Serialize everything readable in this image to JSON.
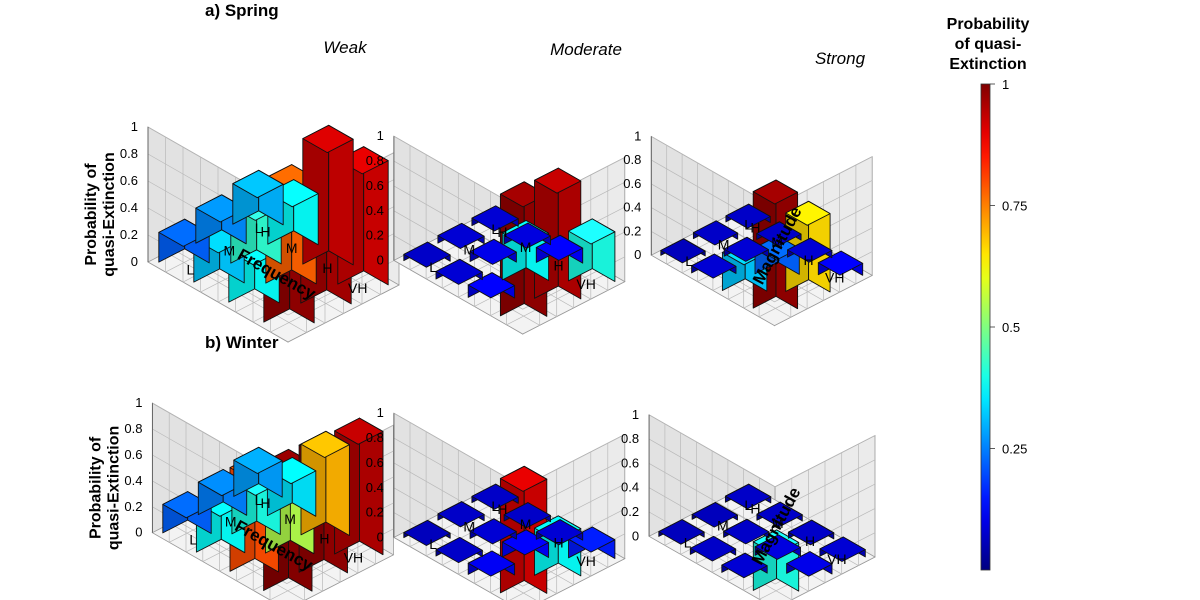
{
  "chart_data": {
    "type": "bar3d",
    "colorbar": {
      "title_lines": [
        "Probability",
        "of quasi-",
        "Extinction"
      ],
      "ticks": [
        {
          "value": 1,
          "label": "1"
        },
        {
          "value": 0.75,
          "label": "0.75"
        },
        {
          "value": 0.5,
          "label": "0.5"
        },
        {
          "value": 0.25,
          "label": "0.25"
        }
      ],
      "range": [
        0,
        1
      ]
    },
    "rows": [
      {
        "title": "a) Spring",
        "panels": [
          {
            "title": "Weak",
            "zlabel_lines": [
              "Probability of",
              "quasi-Extinction"
            ],
            "xlabel": "Frequency",
            "ylabel": "",
            "zticks": [
              "0",
              "0.2",
              "0.4",
              "0.6",
              "0.8",
              "1"
            ],
            "frequency_levels": [
              "VH",
              "H",
              "M",
              "L"
            ],
            "magnitude_levels": [
              "L",
              "M",
              "H"
            ],
            "values": [
              [
                0.98,
                0.96,
                0.92
              ],
              [
                0.38,
                0.78,
                0.93
              ],
              [
                0.32,
                0.42,
                0.38
              ],
              [
                0.22,
                0.26,
                0.3
              ]
            ]
          },
          {
            "title": "Moderate",
            "zlabel_lines": [],
            "xlabel": "",
            "ylabel": "",
            "zticks": [
              "0",
              "0.2",
              "0.4",
              "0.6",
              "0.8",
              "1"
            ],
            "frequency_levels": [
              "VH",
              "H",
              "M",
              "L"
            ],
            "magnitude_levels": [
              "L",
              "M",
              "H"
            ],
            "values": [
              [
                0.98,
                0.95,
                0.4
              ],
              [
                0.1,
                0.38,
                0.12
              ],
              [
                0.06,
                0.08,
                0.07
              ],
              [
                0.05,
                0.06,
                0.06
              ]
            ]
          },
          {
            "title": "Strong",
            "zlabel_lines": [],
            "xlabel": "",
            "ylabel": "Magnitude",
            "zticks": [
              "0",
              "0.2",
              "0.4",
              "0.6",
              "0.8",
              "1"
            ],
            "frequency_levels": [
              "VH",
              "H",
              "M",
              "L"
            ],
            "magnitude_levels": [
              "L",
              "M",
              "H"
            ],
            "values": [
              [
                0.98,
                0.66,
                0.1
              ],
              [
                0.32,
                0.22,
                0.06
              ],
              [
                0.06,
                0.06,
                0.05
              ],
              [
                0.04,
                0.05,
                0.05
              ]
            ]
          }
        ]
      },
      {
        "title": "b) Winter",
        "panels": [
          {
            "title": "",
            "zlabel_lines": [
              "Probability of",
              "quasi-Extinction"
            ],
            "xlabel": "Frequency",
            "ylabel": "",
            "zticks": [
              "0",
              "0.2",
              "0.4",
              "0.6",
              "0.8",
              "1"
            ],
            "frequency_levels": [
              "VH",
              "H",
              "M",
              "L"
            ],
            "magnitude_levels": [
              "L",
              "M",
              "H"
            ],
            "values": [
              [
                0.99,
                0.98,
                0.95
              ],
              [
                0.8,
                0.55,
                0.7
              ],
              [
                0.38,
                0.4,
                0.35
              ],
              [
                0.22,
                0.25,
                0.28
              ]
            ]
          },
          {
            "title": "",
            "zlabel_lines": [],
            "xlabel": "",
            "ylabel": "",
            "zticks": [
              "0",
              "0.2",
              "0.4",
              "0.6",
              "0.8",
              "1"
            ],
            "frequency_levels": [
              "VH",
              "H",
              "M",
              "L"
            ],
            "magnitude_levels": [
              "L",
              "M",
              "H"
            ],
            "values": [
              [
                0.92,
                0.38,
                0.15
              ],
              [
                0.09,
                0.12,
                0.06
              ],
              [
                0.05,
                0.06,
                0.05
              ],
              [
                0.04,
                0.05,
                0.05
              ]
            ]
          },
          {
            "title": "",
            "zlabel_lines": [],
            "xlabel": "",
            "ylabel": "Magnitude",
            "zticks": [
              "0",
              "0.2",
              "0.4",
              "0.6",
              "0.8",
              "1"
            ],
            "frequency_levels": [
              "VH",
              "H",
              "M",
              "L"
            ],
            "magnitude_levels": [
              "L",
              "M",
              "H"
            ],
            "values": [
              [
                0.4,
                0.08,
                0.06
              ],
              [
                0.06,
                0.07,
                0.05
              ],
              [
                0.05,
                0.05,
                0.05
              ],
              [
                0.04,
                0.04,
                0.05
              ]
            ]
          }
        ]
      }
    ]
  }
}
